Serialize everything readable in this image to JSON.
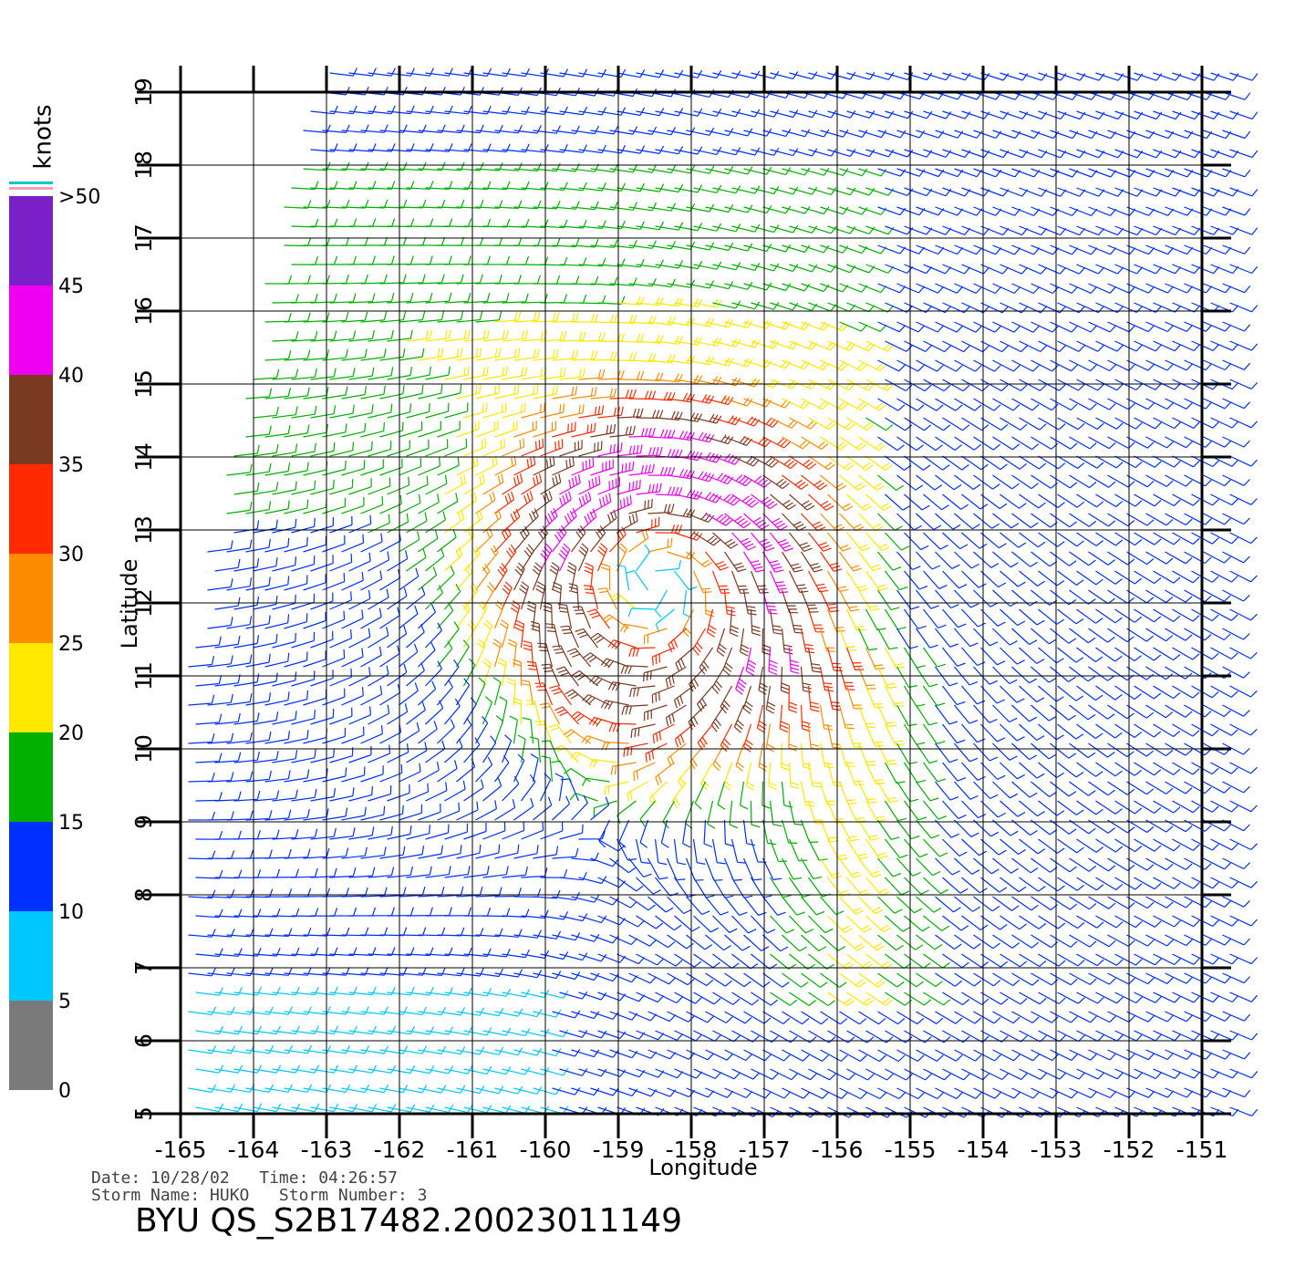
{
  "chart_data": {
    "type": "wind-barb-map",
    "xlabel": "Longitude",
    "ylabel": "Latitude",
    "xlim": [
      -165,
      -151
    ],
    "ylim": [
      5,
      19
    ],
    "xticks": [
      -165,
      -164,
      -163,
      -162,
      -161,
      -160,
      -159,
      -158,
      -157,
      -156,
      -155,
      -154,
      -153,
      -152,
      -151
    ],
    "yticks": [
      5,
      6,
      7,
      8,
      9,
      10,
      11,
      12,
      13,
      14,
      15,
      16,
      17,
      18,
      19
    ],
    "grid": true,
    "colorbar": {
      "label": "knots",
      "ticks": [
        0,
        5,
        10,
        15,
        20,
        25,
        30,
        35,
        40,
        45,
        {
          "value": 50,
          "label": ">50"
        }
      ],
      "colors": [
        "#7a7a7a",
        "#00c8ff",
        "#0030ff",
        "#00b000",
        "#ffe800",
        "#ff8c00",
        "#ff2a00",
        "#7a3a22",
        "#f000f0",
        "#7a20c8"
      ]
    },
    "footer": {
      "date_line": "Date: 10/28/02   Time: 04:26:57",
      "storm_line": "Storm Name: HUKO   Storm Number: 3",
      "file_id": "BYU  QS_S2B17482.20023011149"
    }
  }
}
